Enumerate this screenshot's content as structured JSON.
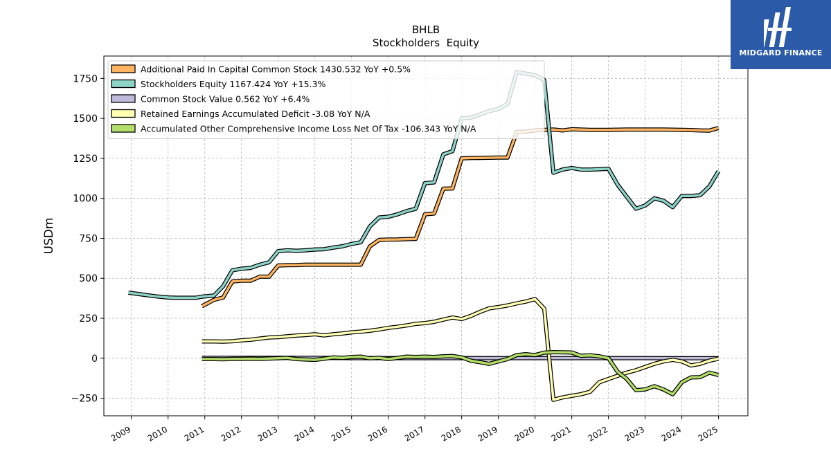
{
  "brand": {
    "name": "MIDGARD FINANCE",
    "color": "#2a5aa8"
  },
  "chart_data": {
    "type": "line",
    "title": "BHLB",
    "subtitle": "Stockholders  Equity",
    "xlabel": "",
    "ylabel": "USDm",
    "xlim": [
      2008.25,
      2025.8
    ],
    "ylim": [
      -360,
      1890
    ],
    "x_ticks": [
      2009,
      2010,
      2011,
      2012,
      2013,
      2014,
      2015,
      2016,
      2017,
      2018,
      2019,
      2020,
      2021,
      2022,
      2023,
      2024,
      2025
    ],
    "x_tick_labels": [
      "2009",
      "2010",
      "2011",
      "2012",
      "2013",
      "2014",
      "2015",
      "2016",
      "2017",
      "2018",
      "2019",
      "2020",
      "2021",
      "2022",
      "2023",
      "2024",
      "2025"
    ],
    "y_ticks": [
      -250,
      0,
      250,
      500,
      750,
      1000,
      1250,
      1500,
      1750
    ],
    "y_tick_labels": [
      "−250",
      "0",
      "250",
      "500",
      "750",
      "1000",
      "1250",
      "1500",
      "1750"
    ],
    "grid": true,
    "legend_position": "top-left",
    "series": [
      {
        "name": "Additional Paid In Capital Common Stock  1430.532 YoY +0.5%",
        "color": "#fdb462",
        "points": [
          [
            2010.92,
            325
          ],
          [
            2011.25,
            365
          ],
          [
            2011.5,
            380
          ],
          [
            2011.75,
            480
          ],
          [
            2012.0,
            485
          ],
          [
            2012.25,
            485
          ],
          [
            2012.5,
            510
          ],
          [
            2012.75,
            510
          ],
          [
            2013.0,
            580
          ],
          [
            2013.25,
            582
          ],
          [
            2013.5,
            583
          ],
          [
            2013.75,
            585
          ],
          [
            2014.0,
            585
          ],
          [
            2014.25,
            585
          ],
          [
            2014.5,
            585
          ],
          [
            2014.75,
            585
          ],
          [
            2015.0,
            585
          ],
          [
            2015.25,
            585
          ],
          [
            2015.5,
            700
          ],
          [
            2015.75,
            740
          ],
          [
            2016.0,
            742
          ],
          [
            2016.25,
            743
          ],
          [
            2016.5,
            745
          ],
          [
            2016.75,
            747
          ],
          [
            2017.0,
            900
          ],
          [
            2017.25,
            905
          ],
          [
            2017.5,
            1060
          ],
          [
            2017.75,
            1062
          ],
          [
            2018.0,
            1250
          ],
          [
            2018.25,
            1252
          ],
          [
            2018.5,
            1253
          ],
          [
            2018.75,
            1254
          ],
          [
            2019.0,
            1255
          ],
          [
            2019.25,
            1255
          ],
          [
            2019.5,
            1415
          ],
          [
            2019.75,
            1418
          ],
          [
            2020.0,
            1425
          ],
          [
            2020.25,
            1428
          ],
          [
            2020.5,
            1430
          ],
          [
            2020.75,
            1425
          ],
          [
            2021.0,
            1432
          ],
          [
            2021.25,
            1430
          ],
          [
            2021.5,
            1428
          ],
          [
            2021.75,
            1428
          ],
          [
            2022.0,
            1428
          ],
          [
            2022.25,
            1429
          ],
          [
            2022.5,
            1430
          ],
          [
            2022.75,
            1430
          ],
          [
            2023.0,
            1430
          ],
          [
            2023.25,
            1430
          ],
          [
            2023.5,
            1430
          ],
          [
            2023.75,
            1429
          ],
          [
            2024.0,
            1428
          ],
          [
            2024.25,
            1427
          ],
          [
            2024.5,
            1425
          ],
          [
            2024.75,
            1424
          ],
          [
            2025.0,
            1440
          ]
        ]
      },
      {
        "name": "Stockholders Equity  1167.424 YoY +15.3%",
        "color": "#8dd3c7",
        "points": [
          [
            2008.92,
            410
          ],
          [
            2009.25,
            400
          ],
          [
            2009.5,
            392
          ],
          [
            2009.75,
            385
          ],
          [
            2010.0,
            380
          ],
          [
            2010.25,
            378
          ],
          [
            2010.5,
            378
          ],
          [
            2010.75,
            378
          ],
          [
            2010.92,
            385
          ],
          [
            2011.25,
            392
          ],
          [
            2011.5,
            450
          ],
          [
            2011.75,
            550
          ],
          [
            2012.0,
            560
          ],
          [
            2012.25,
            565
          ],
          [
            2012.5,
            585
          ],
          [
            2012.75,
            600
          ],
          [
            2013.0,
            670
          ],
          [
            2013.25,
            675
          ],
          [
            2013.5,
            672
          ],
          [
            2013.75,
            675
          ],
          [
            2014.0,
            680
          ],
          [
            2014.25,
            682
          ],
          [
            2014.5,
            692
          ],
          [
            2014.75,
            700
          ],
          [
            2015.0,
            715
          ],
          [
            2015.25,
            725
          ],
          [
            2015.5,
            825
          ],
          [
            2015.75,
            880
          ],
          [
            2016.0,
            885
          ],
          [
            2016.25,
            900
          ],
          [
            2016.5,
            920
          ],
          [
            2016.75,
            935
          ],
          [
            2017.0,
            1095
          ],
          [
            2017.25,
            1100
          ],
          [
            2017.5,
            1275
          ],
          [
            2017.75,
            1295
          ],
          [
            2018.0,
            1500
          ],
          [
            2018.25,
            1505
          ],
          [
            2018.5,
            1525
          ],
          [
            2018.75,
            1545
          ],
          [
            2019.0,
            1560
          ],
          [
            2019.25,
            1590
          ],
          [
            2019.5,
            1790
          ],
          [
            2019.75,
            1780
          ],
          [
            2020.0,
            1770
          ],
          [
            2020.25,
            1740
          ],
          [
            2020.5,
            1160
          ],
          [
            2020.75,
            1180
          ],
          [
            2021.0,
            1190
          ],
          [
            2021.25,
            1180
          ],
          [
            2021.5,
            1180
          ],
          [
            2021.75,
            1182
          ],
          [
            2022.0,
            1185
          ],
          [
            2022.25,
            1085
          ],
          [
            2022.5,
            1010
          ],
          [
            2022.75,
            935
          ],
          [
            2023.0,
            955
          ],
          [
            2023.25,
            1000
          ],
          [
            2023.5,
            985
          ],
          [
            2023.75,
            945
          ],
          [
            2024.0,
            1015
          ],
          [
            2024.25,
            1015
          ],
          [
            2024.5,
            1020
          ],
          [
            2024.75,
            1075
          ],
          [
            2025.0,
            1170
          ]
        ]
      },
      {
        "name": "Common Stock Value  0.562 YoY +6.4%",
        "color": "#bebada",
        "points": [
          [
            2010.92,
            2
          ],
          [
            2012.0,
            2
          ],
          [
            2013.0,
            2
          ],
          [
            2014.0,
            2
          ],
          [
            2015.0,
            1
          ],
          [
            2016.0,
            1
          ],
          [
            2017.0,
            1
          ],
          [
            2018.0,
            1
          ],
          [
            2019.0,
            1
          ],
          [
            2020.0,
            1
          ],
          [
            2021.0,
            1
          ],
          [
            2022.0,
            1
          ],
          [
            2023.0,
            0.8
          ],
          [
            2024.0,
            0.6
          ],
          [
            2025.0,
            0.6
          ]
        ]
      },
      {
        "name": "Retained Earnings Accumulated Deficit  -3.08 YoY N/A",
        "color": "#ffffb3",
        "points": [
          [
            2010.92,
            105
          ],
          [
            2011.25,
            105
          ],
          [
            2011.5,
            104
          ],
          [
            2011.75,
            106
          ],
          [
            2012.0,
            112
          ],
          [
            2012.25,
            116
          ],
          [
            2012.5,
            123
          ],
          [
            2012.75,
            130
          ],
          [
            2013.0,
            132
          ],
          [
            2013.25,
            137
          ],
          [
            2013.5,
            142
          ],
          [
            2013.75,
            145
          ],
          [
            2014.0,
            150
          ],
          [
            2014.25,
            143
          ],
          [
            2014.5,
            150
          ],
          [
            2014.75,
            155
          ],
          [
            2015.0,
            162
          ],
          [
            2015.25,
            166
          ],
          [
            2015.5,
            172
          ],
          [
            2015.75,
            180
          ],
          [
            2016.0,
            190
          ],
          [
            2016.25,
            197
          ],
          [
            2016.5,
            205
          ],
          [
            2016.75,
            215
          ],
          [
            2017.0,
            220
          ],
          [
            2017.25,
            228
          ],
          [
            2017.5,
            242
          ],
          [
            2017.75,
            255
          ],
          [
            2018.0,
            245
          ],
          [
            2018.25,
            265
          ],
          [
            2018.5,
            290
          ],
          [
            2018.75,
            312
          ],
          [
            2019.0,
            320
          ],
          [
            2019.25,
            330
          ],
          [
            2019.5,
            343
          ],
          [
            2019.75,
            355
          ],
          [
            2020.0,
            370
          ],
          [
            2020.25,
            310
          ],
          [
            2020.5,
            -260
          ],
          [
            2020.75,
            -245
          ],
          [
            2021.0,
            -235
          ],
          [
            2021.25,
            -225
          ],
          [
            2021.5,
            -210
          ],
          [
            2021.75,
            -150
          ],
          [
            2022.0,
            -130
          ],
          [
            2022.25,
            -110
          ],
          [
            2022.5,
            -90
          ],
          [
            2022.75,
            -75
          ],
          [
            2023.0,
            -55
          ],
          [
            2023.25,
            -35
          ],
          [
            2023.5,
            -20
          ],
          [
            2023.75,
            -10
          ],
          [
            2024.0,
            -20
          ],
          [
            2024.25,
            -45
          ],
          [
            2024.5,
            -35
          ],
          [
            2024.75,
            -15
          ],
          [
            2025.0,
            -3
          ]
        ]
      },
      {
        "name": "Accumulated Other Comprehensive Income Loss Net Of Tax  -106.343 YoY N/A",
        "color": "#b3de69",
        "points": [
          [
            2010.92,
            -5
          ],
          [
            2011.25,
            -5
          ],
          [
            2011.5,
            -6
          ],
          [
            2011.75,
            -4
          ],
          [
            2012.0,
            -4
          ],
          [
            2012.25,
            -3
          ],
          [
            2012.5,
            -4
          ],
          [
            2012.75,
            -2
          ],
          [
            2013.0,
            0
          ],
          [
            2013.25,
            2
          ],
          [
            2013.5,
            -5
          ],
          [
            2013.75,
            -8
          ],
          [
            2014.0,
            -10
          ],
          [
            2014.25,
            -3
          ],
          [
            2014.5,
            5
          ],
          [
            2014.75,
            2
          ],
          [
            2015.0,
            8
          ],
          [
            2015.25,
            10
          ],
          [
            2015.5,
            0
          ],
          [
            2015.75,
            3
          ],
          [
            2016.0,
            -5
          ],
          [
            2016.25,
            2
          ],
          [
            2016.5,
            10
          ],
          [
            2016.75,
            8
          ],
          [
            2017.0,
            10
          ],
          [
            2017.25,
            8
          ],
          [
            2017.5,
            12
          ],
          [
            2017.75,
            14
          ],
          [
            2018.0,
            5
          ],
          [
            2018.25,
            -15
          ],
          [
            2018.5,
            -25
          ],
          [
            2018.75,
            -35
          ],
          [
            2019.0,
            -20
          ],
          [
            2019.25,
            -5
          ],
          [
            2019.5,
            20
          ],
          [
            2019.75,
            25
          ],
          [
            2020.0,
            20
          ],
          [
            2020.25,
            35
          ],
          [
            2020.5,
            38
          ],
          [
            2020.75,
            37
          ],
          [
            2021.0,
            36
          ],
          [
            2021.25,
            15
          ],
          [
            2021.5,
            18
          ],
          [
            2021.75,
            12
          ],
          [
            2022.0,
            0
          ],
          [
            2022.25,
            -85
          ],
          [
            2022.5,
            -130
          ],
          [
            2022.75,
            -200
          ],
          [
            2023.0,
            -195
          ],
          [
            2023.25,
            -175
          ],
          [
            2023.5,
            -195
          ],
          [
            2023.75,
            -225
          ],
          [
            2024.0,
            -150
          ],
          [
            2024.25,
            -120
          ],
          [
            2024.5,
            -118
          ],
          [
            2024.75,
            -90
          ],
          [
            2025.0,
            -105
          ]
        ]
      }
    ]
  }
}
